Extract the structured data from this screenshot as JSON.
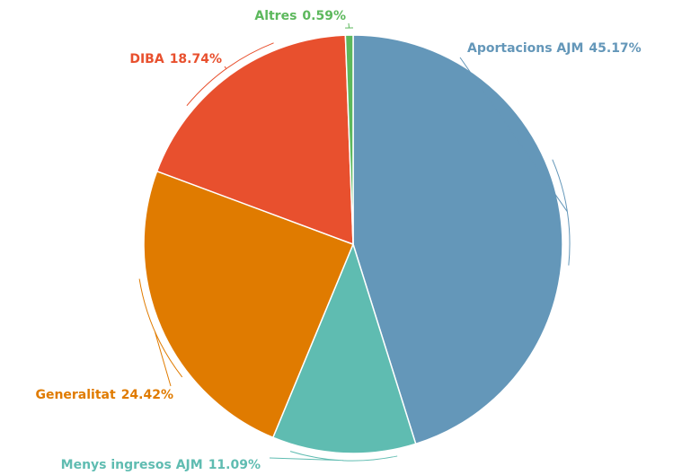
{
  "chart_data": {
    "type": "pie",
    "categories": [
      "Aportacions AJM",
      "Menys ingresos AJM",
      "Generalitat",
      "DIBA",
      "Altres"
    ],
    "values": [
      45.17,
      11.09,
      24.42,
      18.74,
      0.59
    ],
    "value_labels": [
      "45.17%",
      "11.09%",
      "24.42%",
      "18.74%",
      "0.59%"
    ],
    "colors": [
      "#6497b9",
      "#5fbcb1",
      "#e07b00",
      "#e8502e",
      "#5cb85c"
    ]
  }
}
